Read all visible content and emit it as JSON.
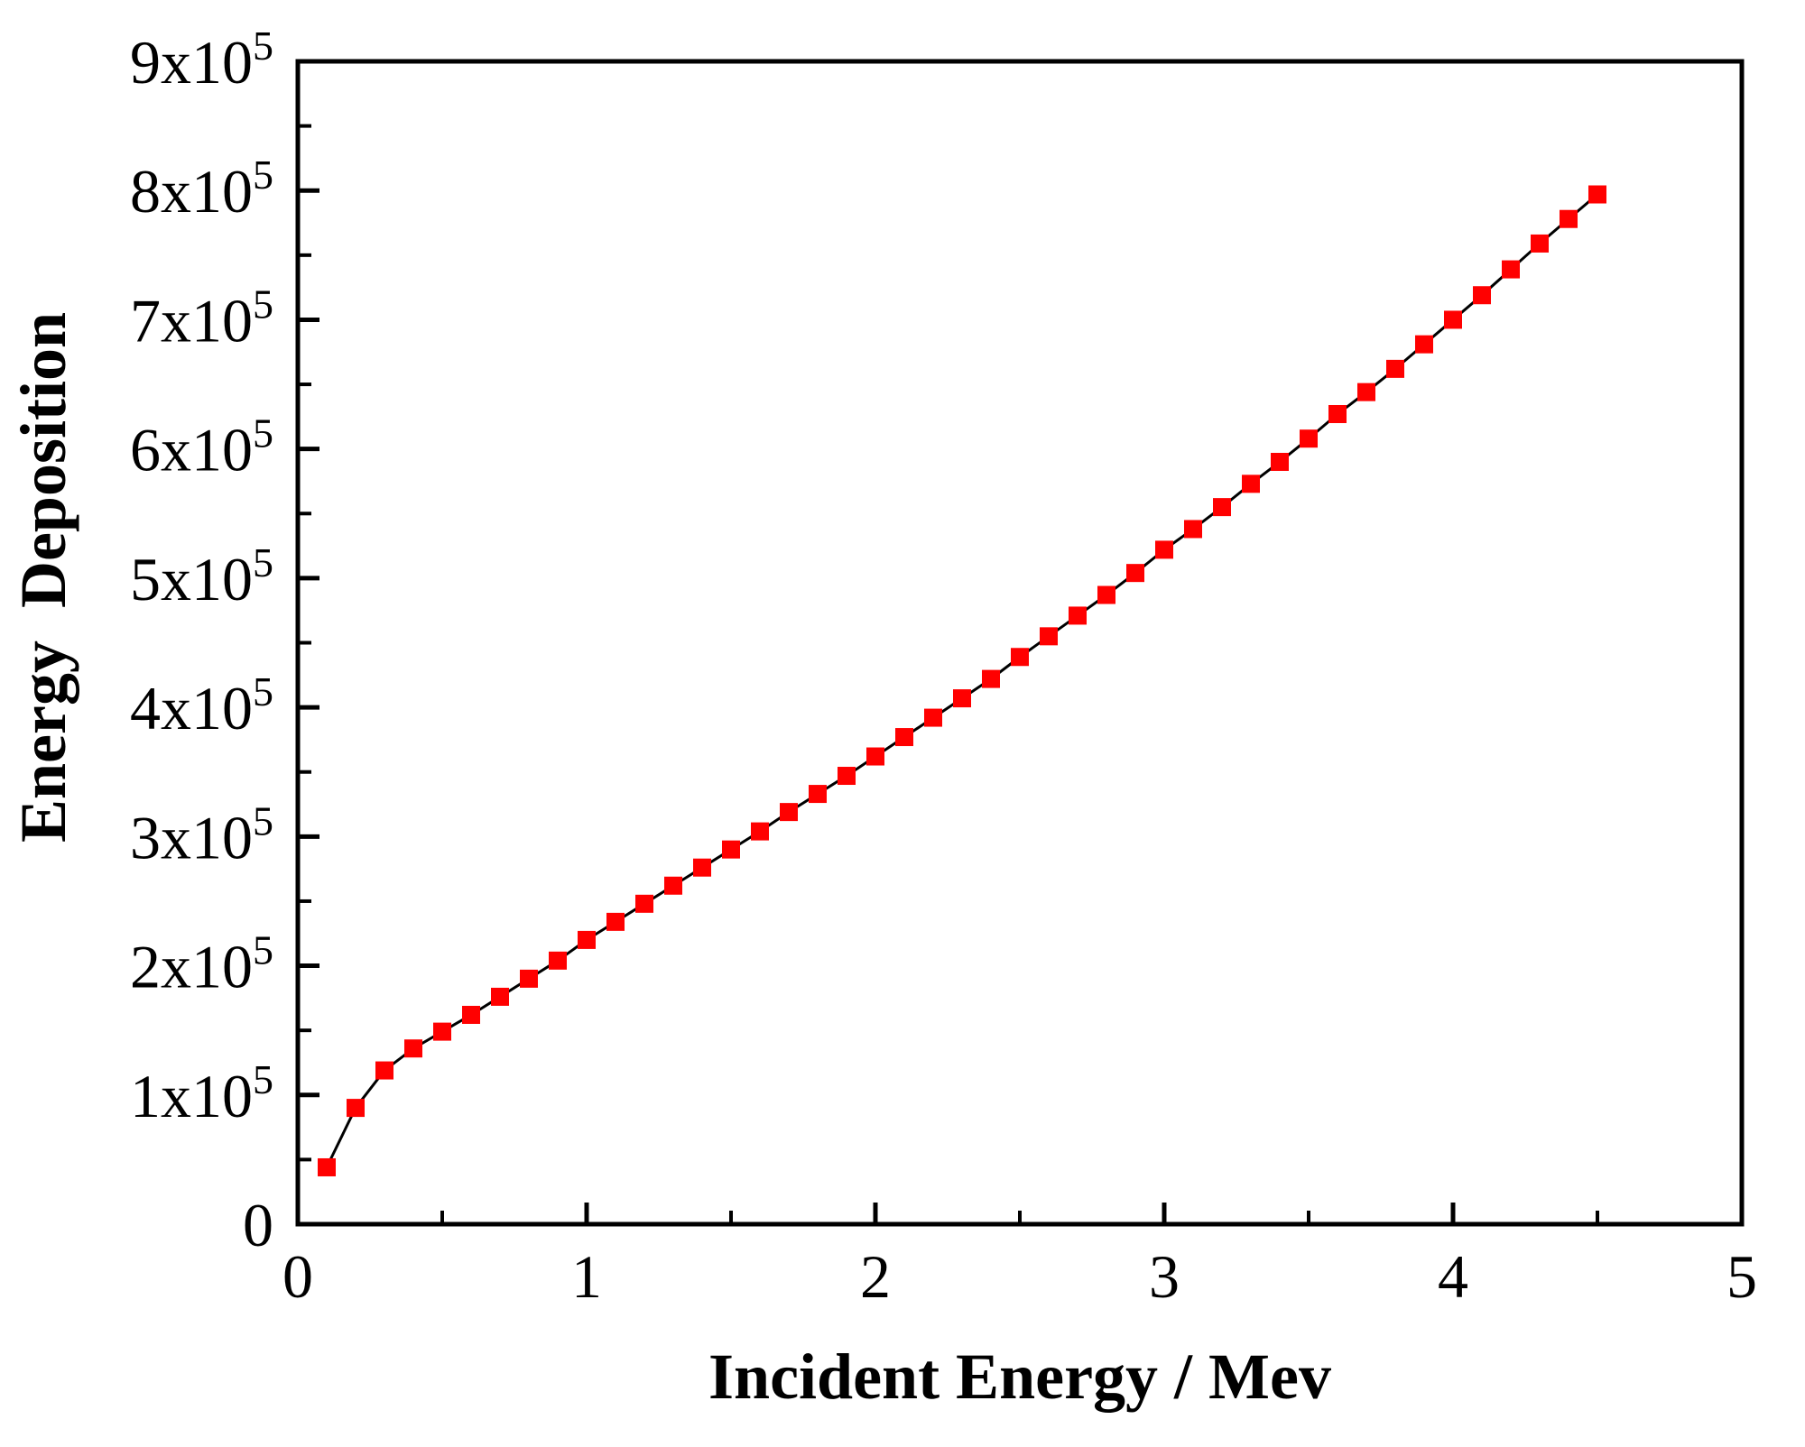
{
  "figure": {
    "background": "#ffffff"
  },
  "chart_data": {
    "type": "line",
    "title": "",
    "xlabel": "Incident Energy / Mev",
    "ylabel": "Energy  Deposition",
    "xlim": [
      0,
      5
    ],
    "ylim": [
      0,
      900000
    ],
    "grid": false,
    "legend": null,
    "axis_color": "#000000",
    "x_major_ticks": [
      0,
      1,
      2,
      3,
      4,
      5
    ],
    "x_tick_labels": [
      "0",
      "1",
      "2",
      "3",
      "4",
      "5"
    ],
    "x_minor_ticks": [
      0.5,
      1.5,
      2.5,
      3.5,
      4.5
    ],
    "y_major_ticks": [
      0,
      100000,
      200000,
      300000,
      400000,
      500000,
      600000,
      700000,
      800000,
      900000
    ],
    "y_tick_labels": [
      "0",
      "1x10^5",
      "2x10^5",
      "3x10^5",
      "4x10^5",
      "5x10^5",
      "6x10^5",
      "7x10^5",
      "8x10^5",
      "9x10^5"
    ],
    "y_minor_ticks": [
      50000,
      150000,
      250000,
      350000,
      450000,
      550000,
      650000,
      750000,
      850000
    ],
    "series": [
      {
        "name": "Energy Deposition",
        "marker": "square",
        "marker_color": "#ff0000",
        "line_color": "#000000",
        "x": [
          0.1,
          0.2,
          0.3,
          0.4,
          0.5,
          0.6,
          0.7,
          0.8,
          0.9,
          1.0,
          1.1,
          1.2,
          1.3,
          1.4,
          1.5,
          1.6,
          1.7,
          1.8,
          1.9,
          2.0,
          2.1,
          2.2,
          2.3,
          2.4,
          2.5,
          2.6,
          2.7,
          2.8,
          2.9,
          3.0,
          3.1,
          3.2,
          3.3,
          3.4,
          3.5,
          3.6,
          3.7,
          3.8,
          3.9,
          4.0,
          4.1,
          4.2,
          4.3,
          4.4,
          4.5
        ],
        "y": [
          44000,
          90000,
          119000,
          136000,
          149000,
          162000,
          176000,
          190000,
          204000,
          220000,
          234000,
          248000,
          262000,
          276000,
          290000,
          304000,
          319000,
          333000,
          347000,
          362000,
          377000,
          392000,
          407000,
          422000,
          439000,
          455000,
          471000,
          487000,
          504000,
          522000,
          538000,
          555000,
          573000,
          590000,
          608000,
          627000,
          644000,
          662000,
          681000,
          700000,
          719000,
          739000,
          759000,
          778000,
          797000
        ]
      }
    ]
  }
}
